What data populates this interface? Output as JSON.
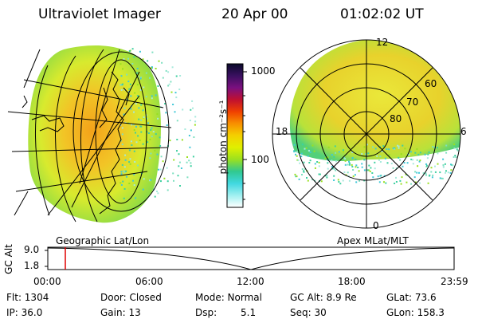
{
  "header": {
    "instrument": "Ultraviolet Imager",
    "date": "20 Apr 00",
    "time": "01:02:02 UT"
  },
  "colorbar": {
    "unit_label": "photon cm⁻²s⁻¹",
    "tick_labels": [
      "1000",
      "100"
    ],
    "ramp_colors": [
      "#0a0a2a",
      "#3a1060",
      "#7a1080",
      "#c01030",
      "#f04000",
      "#f89000",
      "#f4d000",
      "#e0f000",
      "#9ae020",
      "#30c890",
      "#40d8e0",
      "#a0f0f0",
      "#ffffff"
    ]
  },
  "polar_plot": {
    "mlt_labels": {
      "top": "12",
      "left": "18",
      "right": "6",
      "bottom": "0"
    },
    "mlat_labels": [
      "60",
      "70",
      "80"
    ]
  },
  "timeline": {
    "left_title": "Geographic Lat/Lon",
    "right_title": "Apex MLat/MLT",
    "axis_name": "GC Alt",
    "y_ticks": [
      "9.0",
      "1.8"
    ],
    "time_ticks": [
      "00:00",
      "06:00",
      "12:00",
      "18:00",
      "23:59"
    ],
    "marker_color": "#e00000"
  },
  "footer": {
    "flt": "Flt: 1304",
    "ip": "IP: 36.0",
    "door": "Door: Closed",
    "gain": "Gain: 13",
    "mode": "Mode: Normal",
    "dsp_label": "Dsp:",
    "dsp_value": "5.1",
    "gc_alt": "GC Alt: 8.9 Re",
    "seq": "Seq: 30",
    "glat": "GLat: 73.6",
    "glon": "GLon: 158.3"
  }
}
